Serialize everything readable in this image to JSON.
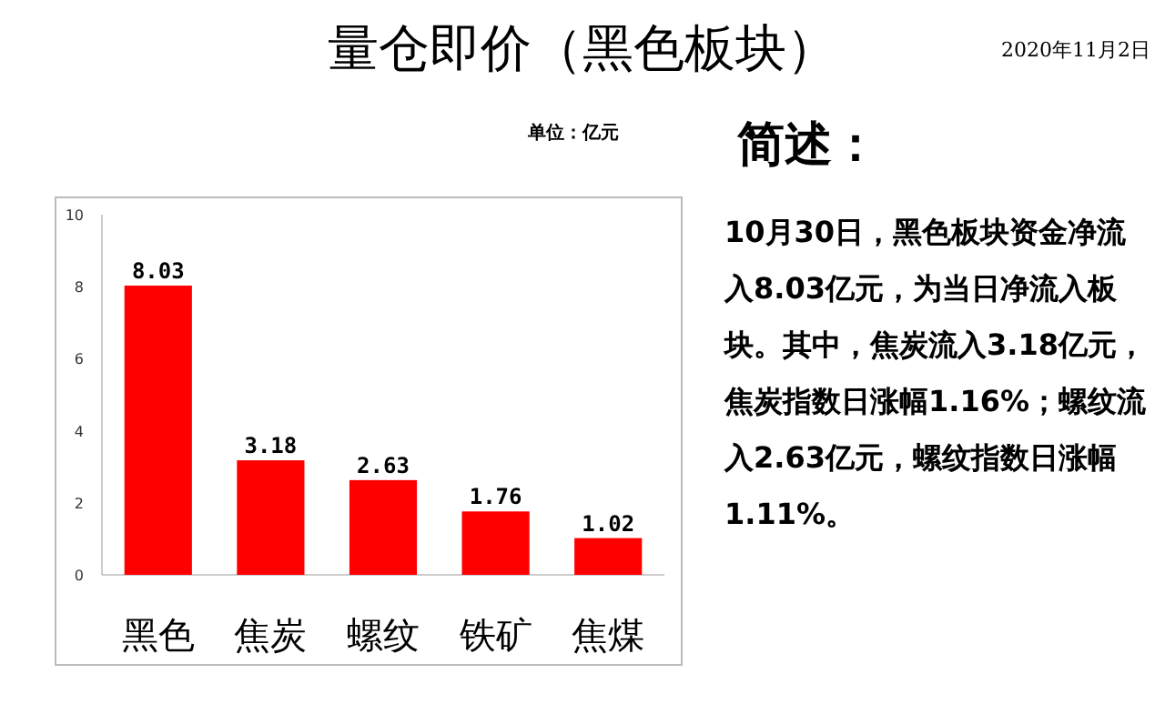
{
  "chart_data": {
    "type": "bar",
    "title": "量仓即价（黑色板块）",
    "subtitle": "单位：亿元",
    "categories": [
      "黑色",
      "焦炭",
      "螺纹",
      "铁矿",
      "焦煤"
    ],
    "values": [
      8.03,
      3.18,
      2.63,
      1.76,
      1.02
    ],
    "color": "#ff0000",
    "ylim": [
      0,
      10
    ],
    "yticks": [
      0,
      2,
      4,
      6,
      8,
      10
    ],
    "data_labels": true,
    "annotations": [
      "2020年11月2日",
      "简述：",
      "10月30日，黑色板块资金净流入8.03亿元，为当日净流入板块。其中，焦炭流入3.18亿元，焦炭指数日涨幅1.16%；螺纹流入2.63亿元，螺纹指数日涨幅1.11%。"
    ]
  }
}
